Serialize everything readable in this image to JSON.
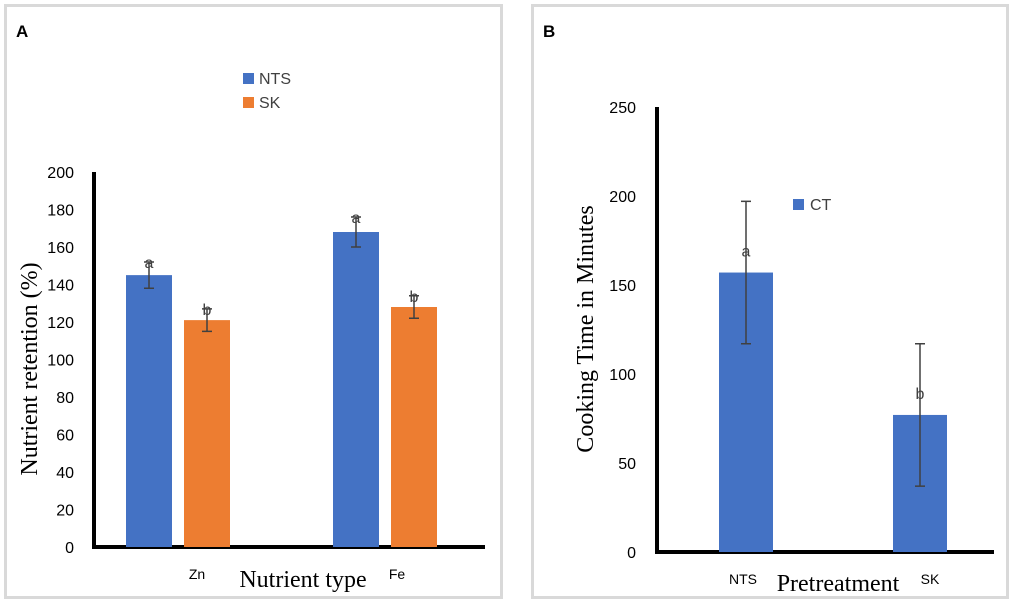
{
  "chart_data": [
    {
      "panel_label": "A",
      "type": "bar",
      "xlabel": "Nutrient type",
      "ylabel": "Nutrient retention (%)",
      "ylim": [
        0,
        200
      ],
      "ytick_step": 20,
      "categories": [
        "Zn",
        "Fe"
      ],
      "legend_position": "top-center",
      "series": [
        {
          "name": "NTS",
          "color": "#4472C4",
          "values": [
            145,
            168
          ],
          "errors": [
            7,
            8
          ],
          "letters": [
            "a",
            "a"
          ]
        },
        {
          "name": "SK",
          "color": "#ED7D31",
          "values": [
            121,
            128
          ],
          "errors": [
            6,
            6
          ],
          "letters": [
            "b",
            "b"
          ]
        }
      ]
    },
    {
      "panel_label": "B",
      "type": "bar",
      "xlabel": "Pretreatment",
      "ylabel": "Cooking Time in Minutes",
      "ylim": [
        0,
        250
      ],
      "ytick_step": 50,
      "categories": [
        "NTS",
        "SK"
      ],
      "legend_position": "top-right",
      "series": [
        {
          "name": "CT",
          "color": "#4472C4",
          "values": [
            157,
            77
          ],
          "errors": [
            40,
            40
          ],
          "letters": [
            "a",
            "b"
          ]
        }
      ]
    }
  ]
}
